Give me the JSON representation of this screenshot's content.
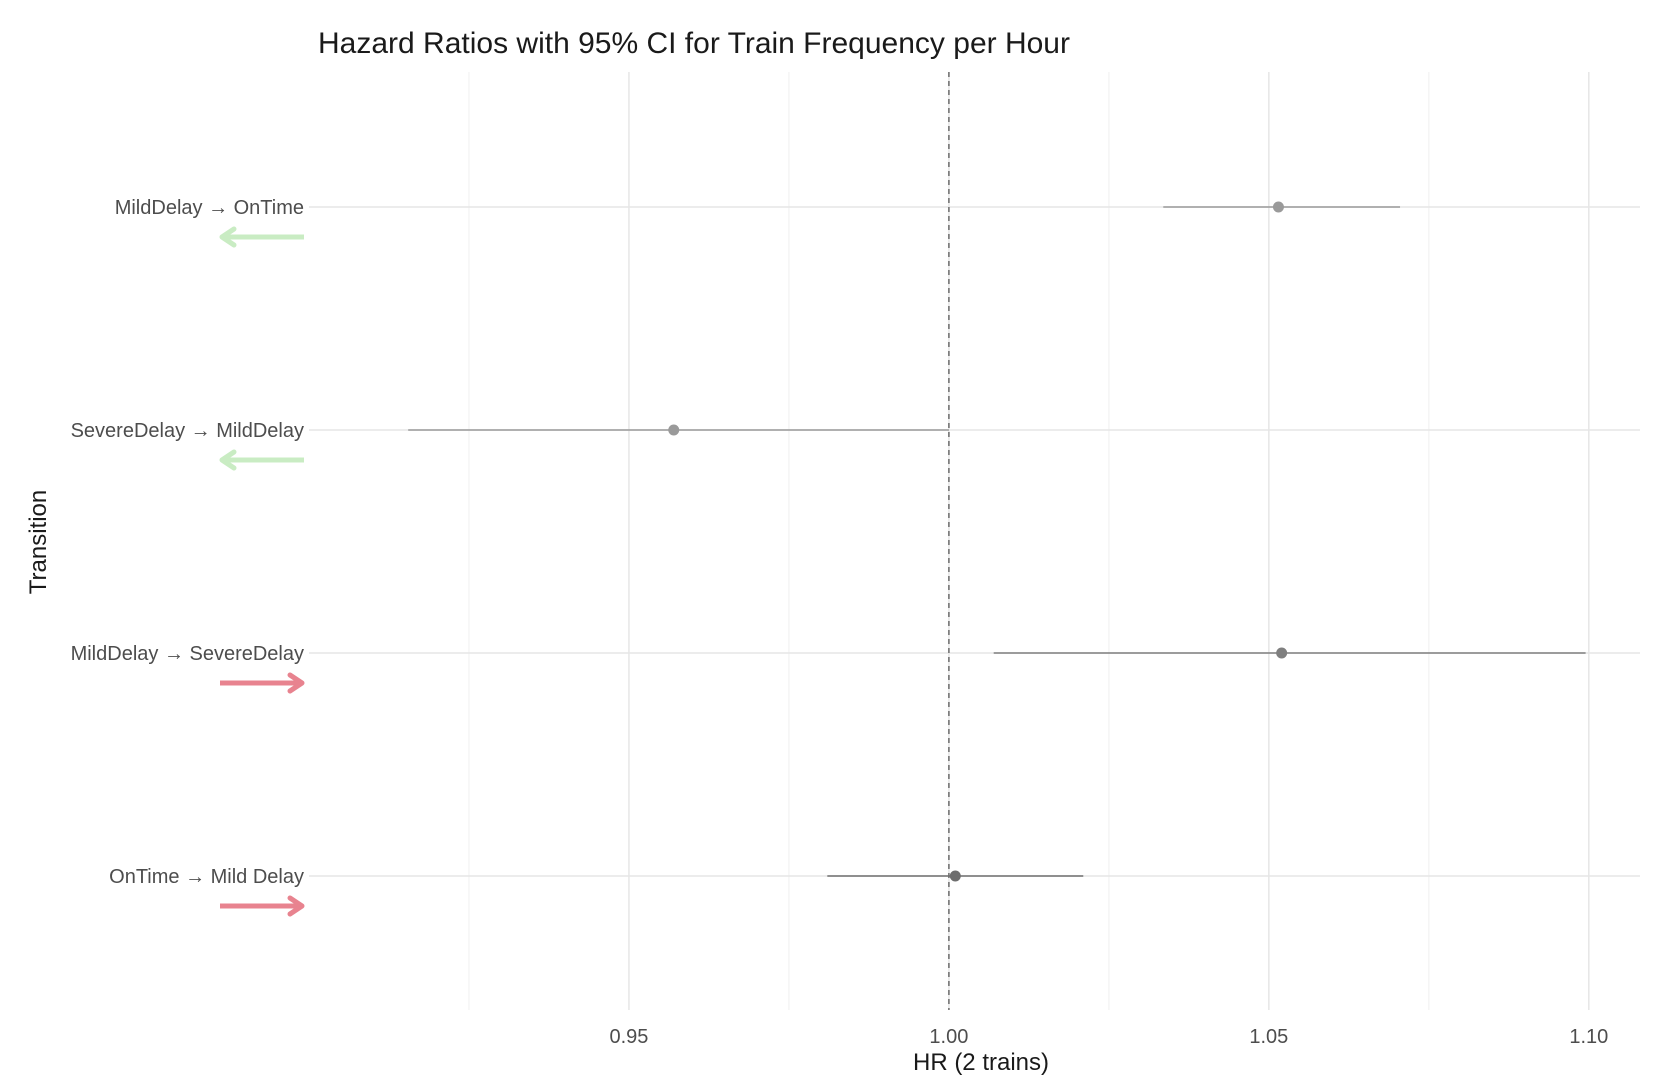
{
  "chart_data": {
    "type": "forest",
    "title": "Hazard Ratios with 95% CI for Train Frequency per Hour",
    "xlabel": "HR (2 trains)",
    "ylabel": "Transition",
    "xlim": [
      0.9,
      1.108
    ],
    "x_ticks": [
      0.95,
      1.0,
      1.05,
      1.1
    ],
    "x_tick_labels": [
      "0.95",
      "1.00",
      "1.05",
      "1.10"
    ],
    "reference_line": 1.0,
    "grid": true,
    "legend": "none",
    "rows": [
      {
        "label": "MildDelay → OnTime",
        "hr": 1.0515,
        "lower": 1.0335,
        "upper": 1.0705,
        "direction": "left",
        "arrow_color": "#c9ecc3",
        "point_color": "#9a9a9a"
      },
      {
        "label": "SevereDelay → MildDelay",
        "hr": 0.957,
        "lower": 0.9155,
        "upper": 1.0,
        "direction": "left",
        "arrow_color": "#c9ecc3",
        "point_color": "#9a9a9a"
      },
      {
        "label": "MildDelay → SevereDelay",
        "hr": 1.052,
        "lower": 1.007,
        "upper": 1.0995,
        "direction": "right",
        "arrow_color": "#e8838f",
        "point_color": "#7f7f7f"
      },
      {
        "label": "OnTime → Mild Delay",
        "hr": 1.001,
        "lower": 0.981,
        "upper": 1.021,
        "direction": "right",
        "arrow_color": "#e8838f",
        "point_color": "#6e6e6e"
      }
    ]
  }
}
